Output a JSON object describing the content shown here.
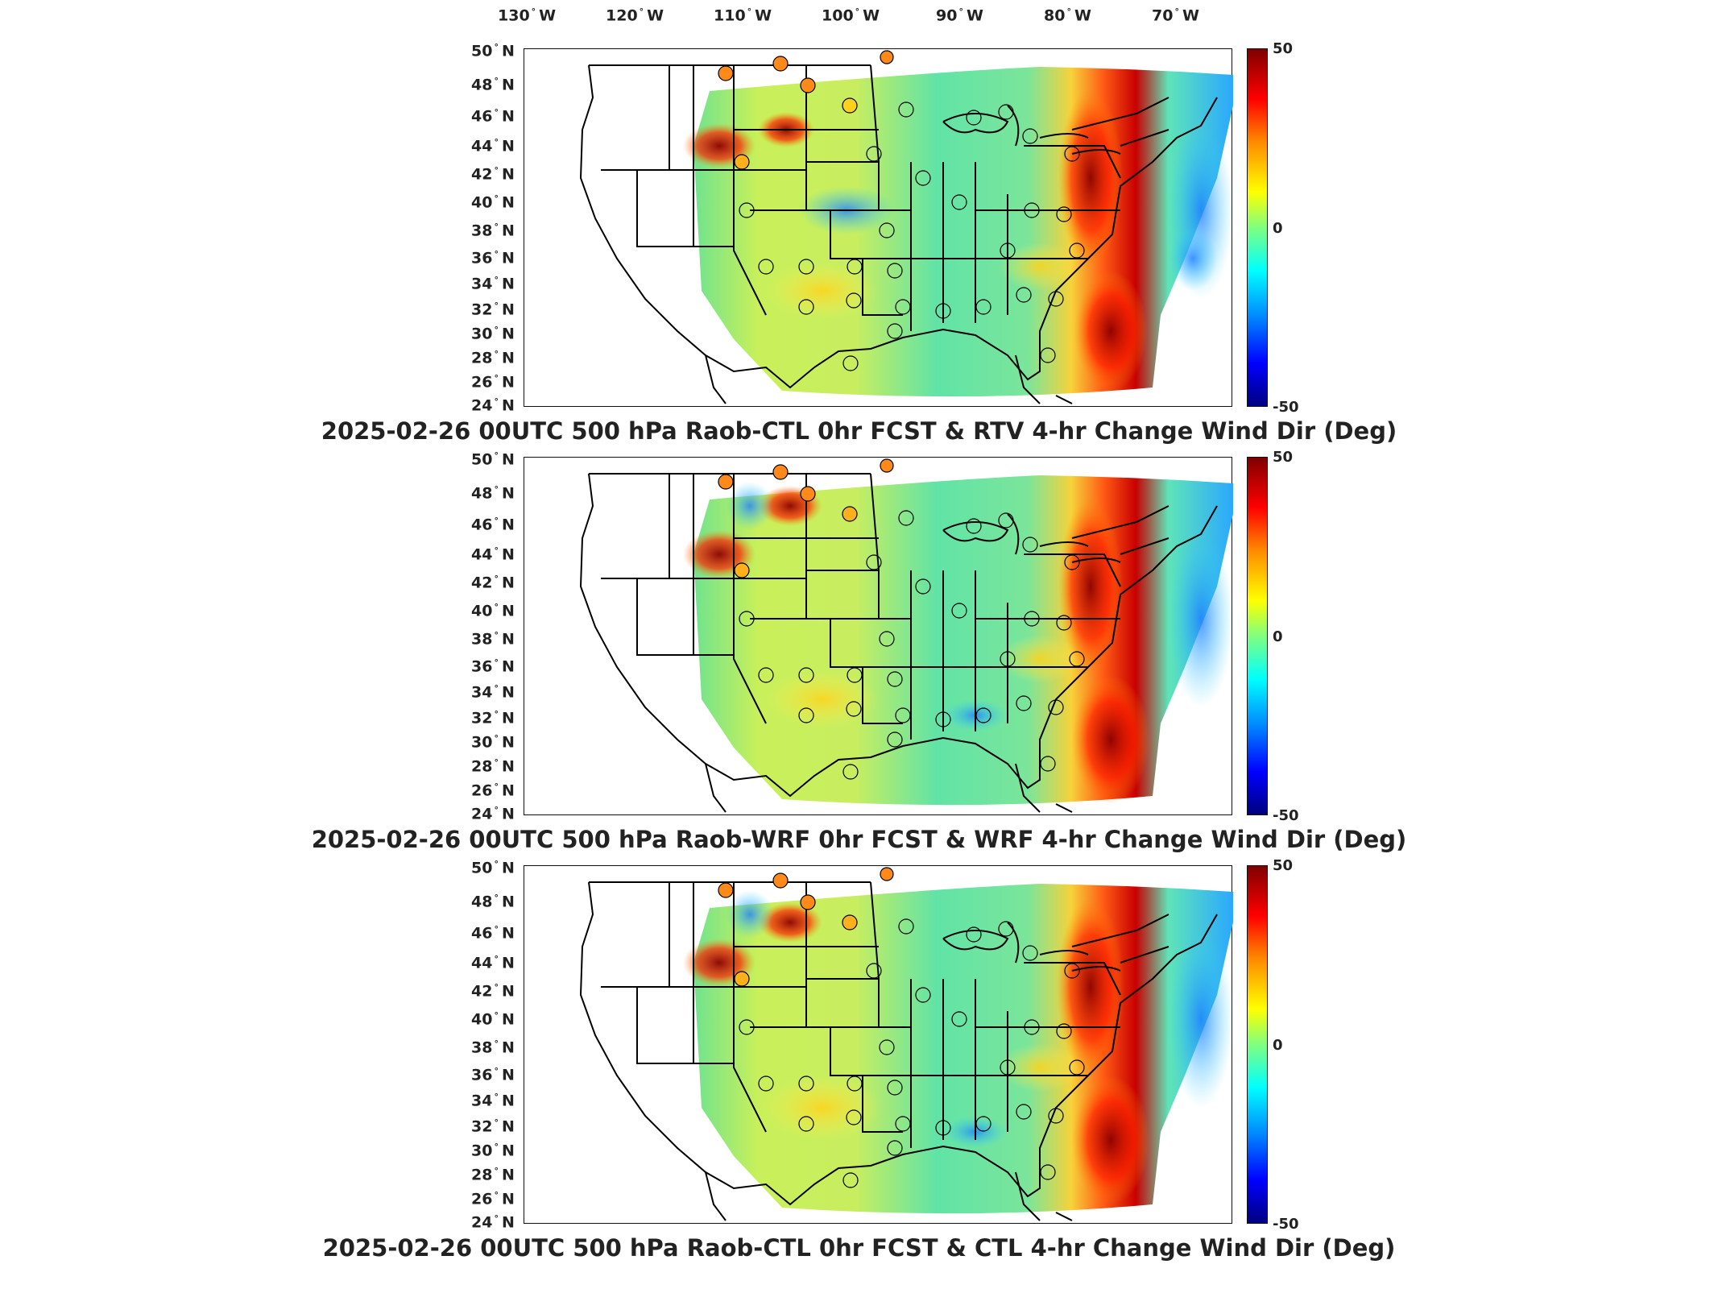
{
  "longitude_labels": [
    {
      "value": "130",
      "hem": "W"
    },
    {
      "value": "120",
      "hem": "W"
    },
    {
      "value": "110",
      "hem": "W"
    },
    {
      "value": "100",
      "hem": "W"
    },
    {
      "value": "90",
      "hem": "W"
    },
    {
      "value": "80",
      "hem": "W"
    },
    {
      "value": "70",
      "hem": "W"
    }
  ],
  "latitude_labels": [
    {
      "value": "50",
      "hem": "N"
    },
    {
      "value": "48",
      "hem": "N"
    },
    {
      "value": "46",
      "hem": "N"
    },
    {
      "value": "44",
      "hem": "N"
    },
    {
      "value": "42",
      "hem": "N"
    },
    {
      "value": "40",
      "hem": "N"
    },
    {
      "value": "38",
      "hem": "N"
    },
    {
      "value": "36",
      "hem": "N"
    },
    {
      "value": "34",
      "hem": "N"
    },
    {
      "value": "32",
      "hem": "N"
    },
    {
      "value": "30",
      "hem": "N"
    },
    {
      "value": "28",
      "hem": "N"
    },
    {
      "value": "26",
      "hem": "N"
    },
    {
      "value": "24",
      "hem": "N"
    }
  ],
  "colorbar": {
    "max_label": "50",
    "mid_label": "0",
    "min_label": "-50",
    "colors": [
      "#800000",
      "#ff0000",
      "#ff8a00",
      "#ffff00",
      "#80ff80",
      "#00ffff",
      "#0088ff",
      "#0000ff",
      "#00007f"
    ]
  },
  "panels": [
    {
      "title": "2025-02-26 00UTC 500 hPa Raob-CTL 0hr FCST & RTV 4-hr Change Wind Dir (Deg)"
    },
    {
      "title": "2025-02-26 00UTC 500 hPa Raob-WRF 0hr FCST & WRF 4-hr Change Wind Dir (Deg)"
    },
    {
      "title": "2025-02-26 00UTC 500 hPa Raob-CTL 0hr FCST & CTL 4-hr Change Wind Dir (Deg)"
    }
  ]
}
